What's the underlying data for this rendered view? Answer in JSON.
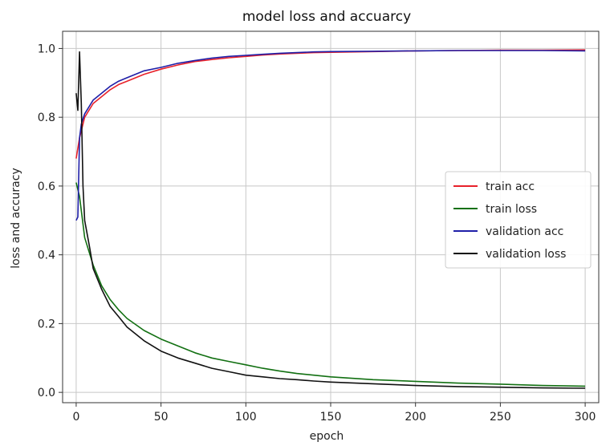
{
  "chart_data": {
    "type": "line",
    "title": "model loss and accuarcy",
    "xlabel": "epoch",
    "ylabel": "loss and accuracy",
    "xlim": [
      -8,
      308
    ],
    "ylim": [
      -0.03,
      1.05
    ],
    "xticks": [
      0,
      50,
      100,
      150,
      200,
      250,
      300
    ],
    "yticks": [
      0.0,
      0.2,
      0.4,
      0.6,
      0.8,
      1.0
    ],
    "grid": true,
    "legend_position": "center-right",
    "series": [
      {
        "name": "train acc",
        "color": "#e8212a",
        "points": [
          [
            0,
            0.68
          ],
          [
            2,
            0.74
          ],
          [
            5,
            0.8
          ],
          [
            10,
            0.84
          ],
          [
            15,
            0.86
          ],
          [
            20,
            0.88
          ],
          [
            25,
            0.895
          ],
          [
            30,
            0.905
          ],
          [
            40,
            0.925
          ],
          [
            50,
            0.94
          ],
          [
            60,
            0.952
          ],
          [
            70,
            0.962
          ],
          [
            80,
            0.968
          ],
          [
            90,
            0.973
          ],
          [
            100,
            0.977
          ],
          [
            110,
            0.981
          ],
          [
            120,
            0.984
          ],
          [
            130,
            0.986
          ],
          [
            140,
            0.988
          ],
          [
            150,
            0.989
          ],
          [
            175,
            0.991
          ],
          [
            200,
            0.993
          ],
          [
            225,
            0.994
          ],
          [
            250,
            0.995
          ],
          [
            275,
            0.995
          ],
          [
            300,
            0.996
          ]
        ]
      },
      {
        "name": "train loss",
        "color": "#127012",
        "points": [
          [
            0,
            0.61
          ],
          [
            2,
            0.57
          ],
          [
            5,
            0.45
          ],
          [
            10,
            0.37
          ],
          [
            15,
            0.31
          ],
          [
            20,
            0.27
          ],
          [
            25,
            0.24
          ],
          [
            30,
            0.215
          ],
          [
            40,
            0.18
          ],
          [
            50,
            0.155
          ],
          [
            60,
            0.135
          ],
          [
            70,
            0.115
          ],
          [
            80,
            0.1
          ],
          [
            90,
            0.09
          ],
          [
            100,
            0.08
          ],
          [
            110,
            0.07
          ],
          [
            120,
            0.062
          ],
          [
            130,
            0.055
          ],
          [
            140,
            0.05
          ],
          [
            150,
            0.045
          ],
          [
            175,
            0.037
          ],
          [
            200,
            0.032
          ],
          [
            225,
            0.027
          ],
          [
            250,
            0.024
          ],
          [
            275,
            0.02
          ],
          [
            300,
            0.018
          ]
        ]
      },
      {
        "name": "validation acc",
        "color": "#1f1fa8",
        "points": [
          [
            0,
            0.5
          ],
          [
            1,
            0.51
          ],
          [
            2,
            0.74
          ],
          [
            3,
            0.78
          ],
          [
            5,
            0.81
          ],
          [
            10,
            0.85
          ],
          [
            15,
            0.87
          ],
          [
            20,
            0.89
          ],
          [
            25,
            0.905
          ],
          [
            30,
            0.915
          ],
          [
            40,
            0.935
          ],
          [
            50,
            0.945
          ],
          [
            60,
            0.957
          ],
          [
            70,
            0.965
          ],
          [
            80,
            0.972
          ],
          [
            90,
            0.977
          ],
          [
            100,
            0.98
          ],
          [
            110,
            0.983
          ],
          [
            120,
            0.986
          ],
          [
            130,
            0.988
          ],
          [
            140,
            0.99
          ],
          [
            150,
            0.991
          ],
          [
            175,
            0.992
          ],
          [
            200,
            0.993
          ],
          [
            225,
            0.994
          ],
          [
            250,
            0.994
          ],
          [
            275,
            0.994
          ],
          [
            300,
            0.993
          ]
        ]
      },
      {
        "name": "validation loss",
        "color": "#111111",
        "points": [
          [
            0,
            0.87
          ],
          [
            1,
            0.82
          ],
          [
            2,
            0.99
          ],
          [
            3,
            0.84
          ],
          [
            4,
            0.6
          ],
          [
            5,
            0.5
          ],
          [
            8,
            0.42
          ],
          [
            10,
            0.36
          ],
          [
            15,
            0.3
          ],
          [
            20,
            0.25
          ],
          [
            25,
            0.22
          ],
          [
            30,
            0.19
          ],
          [
            40,
            0.15
          ],
          [
            50,
            0.12
          ],
          [
            60,
            0.1
          ],
          [
            70,
            0.085
          ],
          [
            80,
            0.07
          ],
          [
            90,
            0.06
          ],
          [
            100,
            0.05
          ],
          [
            110,
            0.045
          ],
          [
            120,
            0.04
          ],
          [
            130,
            0.037
          ],
          [
            140,
            0.033
          ],
          [
            150,
            0.03
          ],
          [
            175,
            0.025
          ],
          [
            200,
            0.02
          ],
          [
            225,
            0.017
          ],
          [
            250,
            0.015
          ],
          [
            275,
            0.013
          ],
          [
            300,
            0.012
          ]
        ]
      }
    ]
  }
}
